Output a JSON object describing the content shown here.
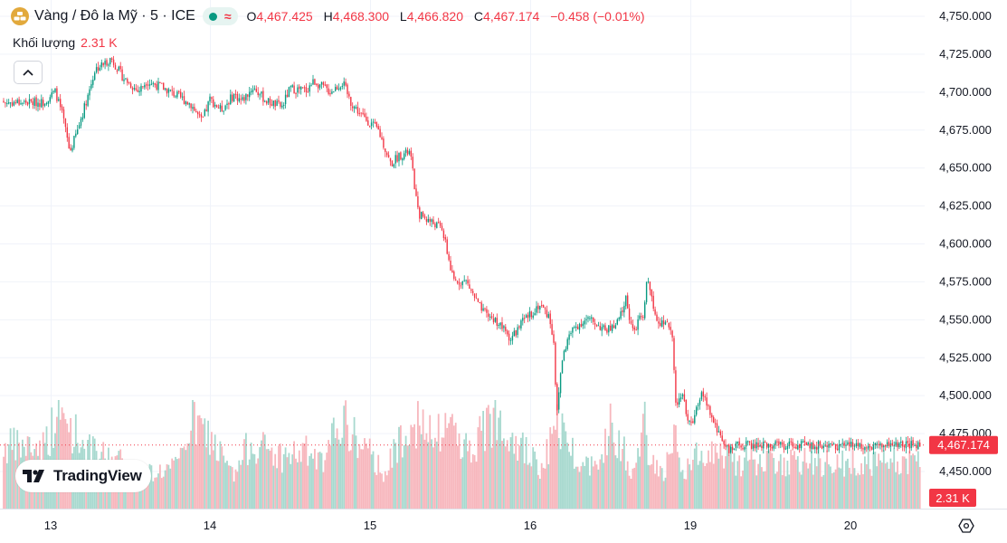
{
  "header": {
    "title": "Vàng / Đô la Mỹ · 5 · ICE",
    "open_label": "O",
    "open": "4,467.425",
    "high_label": "H",
    "high": "4,468.300",
    "low_label": "L",
    "low": "4,466.820",
    "close_label": "C",
    "close": "4,467.174",
    "change": "−0.458 (−0.01%)",
    "status_wave": "≈"
  },
  "volume_row": {
    "label": "Khối lượng",
    "value": "2.31 K"
  },
  "logo": {
    "text": "TradingView"
  },
  "colors": {
    "up": "#089981",
    "down": "#f23645",
    "up_volume": "#a8d9cf",
    "down_volume": "#f7b7bd",
    "grid": "#f0f3fa",
    "text": "#131722"
  },
  "chart_data": {
    "type": "candlestick",
    "x_tick_labels": [
      "13",
      "14",
      "15",
      "16",
      "19",
      "20"
    ],
    "y_tick_labels": [
      "4,450.000",
      "4,475.000",
      "4,500.000",
      "4,525.000",
      "4,550.000",
      "4,575.000",
      "4,600.000",
      "4,625.000",
      "4,650.000",
      "4,675.000",
      "4,700.000",
      "4,725.000",
      "4,750.000"
    ],
    "ylim": [
      4437,
      4757
    ],
    "last_price": 4467.174,
    "last_price_label": "4,467.174",
    "last_volume_label": "2.31 K",
    "grid": true,
    "close_path": [
      {
        "d": 12.95,
        "v": 4693
      },
      {
        "d": 13.03,
        "v": 4700
      },
      {
        "d": 13.08,
        "v": 4682
      },
      {
        "d": 13.12,
        "v": 4660
      },
      {
        "d": 13.17,
        "v": 4675
      },
      {
        "d": 13.24,
        "v": 4700
      },
      {
        "d": 13.28,
        "v": 4715
      },
      {
        "d": 13.33,
        "v": 4718
      },
      {
        "d": 13.38,
        "v": 4722
      },
      {
        "d": 13.45,
        "v": 4710
      },
      {
        "d": 13.55,
        "v": 4700
      },
      {
        "d": 13.6,
        "v": 4707
      },
      {
        "d": 13.7,
        "v": 4703
      },
      {
        "d": 13.8,
        "v": 4697
      },
      {
        "d": 13.88,
        "v": 4692
      },
      {
        "d": 13.95,
        "v": 4680
      },
      {
        "d": 14.0,
        "v": 4695
      },
      {
        "d": 14.07,
        "v": 4688
      },
      {
        "d": 14.15,
        "v": 4698
      },
      {
        "d": 14.2,
        "v": 4694
      },
      {
        "d": 14.27,
        "v": 4703
      },
      {
        "d": 14.35,
        "v": 4694
      },
      {
        "d": 14.45,
        "v": 4690
      },
      {
        "d": 14.5,
        "v": 4702
      },
      {
        "d": 14.6,
        "v": 4701
      },
      {
        "d": 14.65,
        "v": 4707
      },
      {
        "d": 14.75,
        "v": 4700
      },
      {
        "d": 14.83,
        "v": 4706
      },
      {
        "d": 14.88,
        "v": 4693
      },
      {
        "d": 14.95,
        "v": 4684
      },
      {
        "d": 15.05,
        "v": 4675
      },
      {
        "d": 15.13,
        "v": 4652
      },
      {
        "d": 15.18,
        "v": 4658
      },
      {
        "d": 15.25,
        "v": 4660
      },
      {
        "d": 15.3,
        "v": 4620
      },
      {
        "d": 15.37,
        "v": 4615
      },
      {
        "d": 15.45,
        "v": 4610
      },
      {
        "d": 15.52,
        "v": 4575
      },
      {
        "d": 15.6,
        "v": 4575
      },
      {
        "d": 15.7,
        "v": 4555
      },
      {
        "d": 15.8,
        "v": 4548
      },
      {
        "d": 15.88,
        "v": 4537
      },
      {
        "d": 15.95,
        "v": 4548
      },
      {
        "d": 16.0,
        "v": 4553
      },
      {
        "d": 16.1,
        "v": 4560
      },
      {
        "d": 16.2,
        "v": 4552
      },
      {
        "d": 16.25,
        "v": 4535
      },
      {
        "d": 16.28,
        "v": 4485
      },
      {
        "d": 16.33,
        "v": 4522
      },
      {
        "d": 16.4,
        "v": 4538
      },
      {
        "d": 16.47,
        "v": 4545
      },
      {
        "d": 16.55,
        "v": 4548
      },
      {
        "d": 16.6,
        "v": 4550
      },
      {
        "d": 16.68,
        "v": 4548
      },
      {
        "d": 16.78,
        "v": 4543
      },
      {
        "d": 16.9,
        "v": 4545
      },
      {
        "d": 17.05,
        "v": 4568
      },
      {
        "d": 17.1,
        "v": 4553
      },
      {
        "d": 17.3,
        "v": 4540
      },
      {
        "d": 17.4,
        "v": 4548
      },
      {
        "d": 17.5,
        "v": 4553
      },
      {
        "d": 17.55,
        "v": 4545
      },
      {
        "d": 17.63,
        "v": 4560
      },
      {
        "d": 17.73,
        "v": 4580
      },
      {
        "d": 17.83,
        "v": 4567
      },
      {
        "d": 17.93,
        "v": 4555
      },
      {
        "d": 18.0,
        "v": 4552
      },
      {
        "d": 18.15,
        "v": 4548
      },
      {
        "d": 18.3,
        "v": 4545
      },
      {
        "d": 18.4,
        "v": 4547
      },
      {
        "d": 18.5,
        "v": 4535
      },
      {
        "d": 18.55,
        "v": 4505
      },
      {
        "d": 18.6,
        "v": 4488
      },
      {
        "d": 18.7,
        "v": 4503
      },
      {
        "d": 18.8,
        "v": 4498
      },
      {
        "d": 18.9,
        "v": 4485
      },
      {
        "d": 19.0,
        "v": 4480
      },
      {
        "d": 19.08,
        "v": 4502
      },
      {
        "d": 19.15,
        "v": 4480
      },
      {
        "d": 19.25,
        "v": 4463
      },
      {
        "d": 19.3,
        "v": 4467
      }
    ],
    "volume_profile": [
      {
        "d": 12.95,
        "v": 0.6
      },
      {
        "d": 13.05,
        "v": 0.9
      },
      {
        "d": 13.12,
        "v": 0.8
      },
      {
        "d": 13.25,
        "v": 0.55
      },
      {
        "d": 13.45,
        "v": 0.45
      },
      {
        "d": 13.62,
        "v": 0.35
      },
      {
        "d": 13.8,
        "v": 0.4
      },
      {
        "d": 13.88,
        "v": 0.85
      },
      {
        "d": 14.0,
        "v": 0.7
      },
      {
        "d": 14.15,
        "v": 0.3
      },
      {
        "d": 14.25,
        "v": 0.65
      },
      {
        "d": 14.45,
        "v": 0.5
      },
      {
        "d": 14.6,
        "v": 0.55
      },
      {
        "d": 14.72,
        "v": 0.4
      },
      {
        "d": 14.8,
        "v": 0.9
      },
      {
        "d": 14.95,
        "v": 0.6
      },
      {
        "d": 15.1,
        "v": 0.35
      },
      {
        "d": 15.25,
        "v": 0.9
      },
      {
        "d": 15.4,
        "v": 0.65
      },
      {
        "d": 15.5,
        "v": 0.85
      },
      {
        "d": 15.62,
        "v": 0.55
      },
      {
        "d": 15.8,
        "v": 0.95
      },
      {
        "d": 15.95,
        "v": 0.6
      },
      {
        "d": 16.1,
        "v": 0.35
      },
      {
        "d": 16.3,
        "v": 0.85
      },
      {
        "d": 16.45,
        "v": 0.55
      },
      {
        "d": 16.62,
        "v": 0.4
      },
      {
        "d": 16.75,
        "v": 0.6
      },
      {
        "d": 16.85,
        "v": 0.8
      },
      {
        "d": 17.0,
        "v": 0.6
      },
      {
        "d": 17.12,
        "v": 0.3
      },
      {
        "d": 17.3,
        "v": 0.55
      },
      {
        "d": 17.45,
        "v": 0.45
      },
      {
        "d": 17.62,
        "v": 0.85
      },
      {
        "d": 17.75,
        "v": 0.55
      },
      {
        "d": 17.85,
        "v": 0.35
      },
      {
        "d": 18.0,
        "v": 0.5
      },
      {
        "d": 18.15,
        "v": 0.3
      },
      {
        "d": 18.3,
        "v": 0.45
      },
      {
        "d": 18.5,
        "v": 0.55
      },
      {
        "d": 18.6,
        "v": 0.85
      },
      {
        "d": 18.75,
        "v": 0.4
      },
      {
        "d": 18.85,
        "v": 0.3
      },
      {
        "d": 19.0,
        "v": 0.45
      },
      {
        "d": 19.1,
        "v": 0.6
      },
      {
        "d": 19.25,
        "v": 0.5
      },
      {
        "d": 19.3,
        "v": 0.45
      }
    ]
  }
}
